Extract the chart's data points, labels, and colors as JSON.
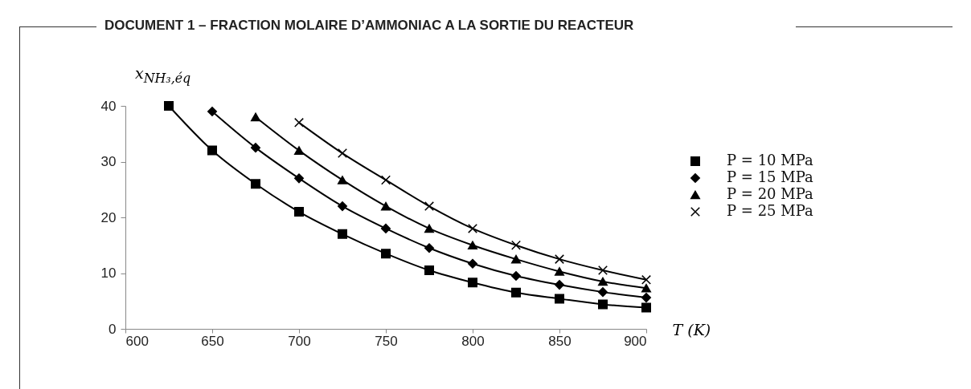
{
  "chart_data": {
    "type": "line",
    "title": "DOCUMENT 1 – FRACTION MOLAIRE D’AMMONIAC A LA SORTIE DU REACTEUR",
    "xlabel": "T (K)",
    "ylabel": "x$_{NH₃,éq}$",
    "x": [
      625,
      650,
      675,
      700,
      725,
      750,
      775,
      800,
      825,
      850,
      875,
      900
    ],
    "series": [
      {
        "name": "P = 10 MPa",
        "color": "#000000",
        "marker": "square",
        "values": [
          40,
          32,
          26,
          21,
          17,
          13.5,
          10.5,
          8.3,
          6.5,
          5.4,
          4.4,
          3.8
        ]
      },
      {
        "name": "P = 15 MPa",
        "color": "#000000",
        "marker": "diamond",
        "values": [
          null,
          39,
          32.5,
          27,
          22,
          18,
          14.5,
          11.7,
          9.5,
          7.9,
          6.6,
          5.6
        ]
      },
      {
        "name": "P = 20 MPa",
        "color": "#000000",
        "marker": "triangle",
        "values": [
          null,
          null,
          38,
          32,
          26.7,
          22,
          18,
          15,
          12.5,
          10.3,
          8.5,
          7.3
        ]
      },
      {
        "name": "P = 25 MPa",
        "color": "#000000",
        "marker": "cross",
        "values": [
          null,
          null,
          null,
          37,
          31.5,
          26.7,
          22,
          18,
          15,
          12.5,
          10.5,
          8.8
        ]
      }
    ],
    "xlim": [
      600,
      900
    ],
    "xticks": [
      600,
      650,
      700,
      750,
      800,
      850,
      900
    ],
    "ylim": [
      0,
      40
    ],
    "yticks": [
      0,
      10,
      20,
      30,
      40
    ],
    "grid": false,
    "legend": "right",
    "line_style": "solid"
  }
}
